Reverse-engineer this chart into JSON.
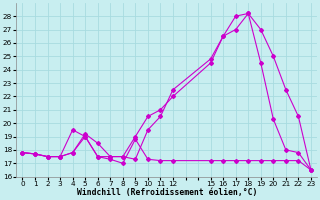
{
  "xlabel": "Windchill (Refroidissement éolien,°C)",
  "bg_color": "#c8eef0",
  "grid_color": "#a8dce0",
  "line_color": "#cc00cc",
  "xlim": [
    -0.5,
    23.5
  ],
  "ylim": [
    16,
    29
  ],
  "xticklabels": [
    "0",
    "1",
    "2",
    "3",
    "4",
    "5",
    "6",
    "7",
    "8",
    "9",
    "10",
    "11",
    "12",
    "15",
    "16",
    "17",
    "18",
    "19",
    "20",
    "21",
    "22",
    "23"
  ],
  "yticks": [
    16,
    17,
    18,
    19,
    20,
    21,
    22,
    23,
    24,
    25,
    26,
    27,
    28
  ],
  "series1_x": [
    0,
    1,
    2,
    3,
    4,
    5,
    6,
    7,
    8,
    9,
    10,
    11,
    12,
    15,
    16,
    17,
    18,
    19,
    20,
    21,
    22,
    23
  ],
  "series1_y": [
    17.8,
    17.7,
    17.5,
    17.5,
    17.8,
    19.0,
    17.5,
    17.3,
    17.0,
    18.8,
    17.3,
    17.2,
    17.2,
    17.2,
    17.2,
    17.2,
    17.2,
    17.2,
    17.2,
    17.2,
    17.2,
    16.5
  ],
  "series2_x": [
    0,
    1,
    2,
    3,
    4,
    5,
    6,
    7,
    8,
    9,
    10,
    11,
    12,
    15,
    16,
    17,
    18,
    19,
    20,
    21,
    22,
    23
  ],
  "series2_y": [
    17.8,
    17.7,
    17.5,
    17.5,
    19.5,
    19.0,
    17.5,
    17.5,
    17.5,
    19.0,
    20.5,
    21.0,
    22.0,
    24.5,
    26.5,
    28.0,
    28.2,
    24.5,
    20.3,
    18.0,
    17.8,
    16.5
  ],
  "series3_x": [
    0,
    1,
    2,
    3,
    4,
    5,
    6,
    7,
    8,
    9,
    10,
    11,
    12,
    15,
    16,
    17,
    18,
    19,
    20,
    21,
    22,
    23
  ],
  "series3_y": [
    17.8,
    17.7,
    17.5,
    17.5,
    17.8,
    19.2,
    18.5,
    17.5,
    17.5,
    17.3,
    19.5,
    20.5,
    22.5,
    24.8,
    26.5,
    27.0,
    28.2,
    27.0,
    25.0,
    22.5,
    20.5,
    16.5
  ]
}
